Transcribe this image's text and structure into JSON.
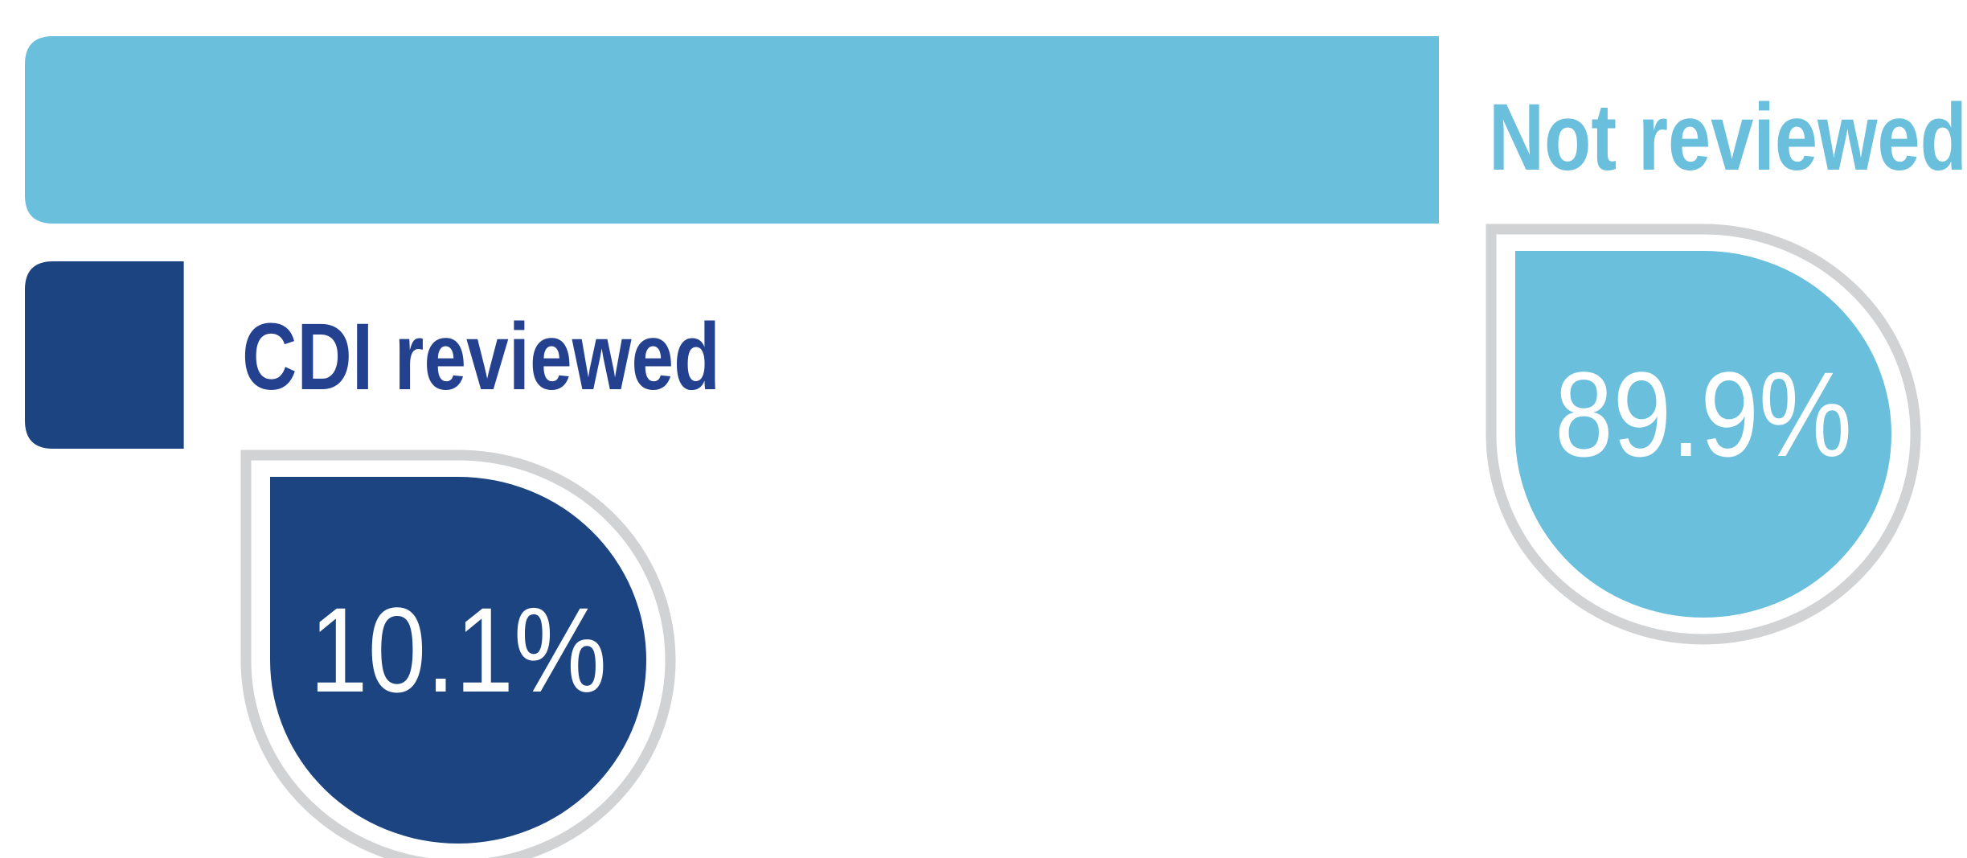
{
  "chart_data": {
    "type": "bar",
    "orientation": "horizontal",
    "categories": [
      "Not reviewed",
      "CDI reviewed"
    ],
    "values": [
      89.9,
      10.1
    ],
    "value_labels": [
      "89.9%",
      "10.1%"
    ],
    "colors": [
      "#69bfdc",
      "#1b4480"
    ],
    "label_colors": [
      "#69bfdc",
      "#24418f"
    ]
  }
}
